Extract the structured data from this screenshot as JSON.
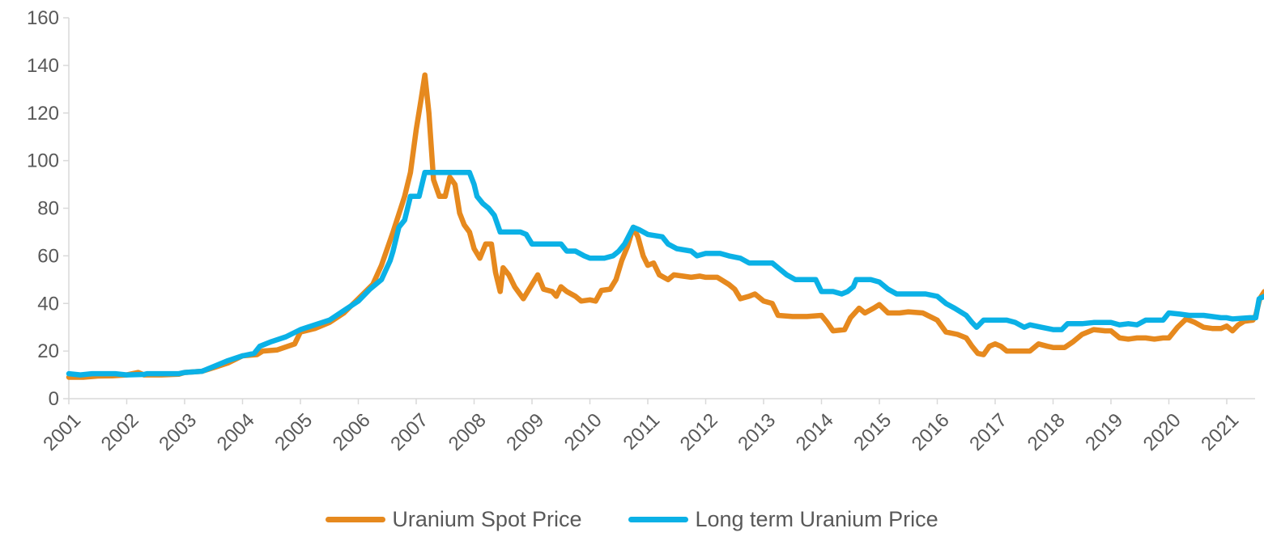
{
  "chart_data": {
    "type": "line",
    "title": "",
    "xlabel": "",
    "ylabel": "",
    "ylim": [
      0,
      160
    ],
    "yticks": [
      "0",
      "20",
      "40",
      "60",
      "80",
      "100",
      "120",
      "140",
      "160"
    ],
    "xlim": [
      2001,
      2021.5
    ],
    "xticks": [
      "2001",
      "2002",
      "2003",
      "2004",
      "2005",
      "2006",
      "2007",
      "2008",
      "2009",
      "2010",
      "2011",
      "2012",
      "2013",
      "2014",
      "2015",
      "2016",
      "2017",
      "2018",
      "2019",
      "2020",
      "2021"
    ],
    "grid": false,
    "legend_position": "bottom",
    "series": [
      {
        "name": "Uranium Spot Price",
        "color": "#E6891E",
        "points": [
          [
            2001.0,
            9
          ],
          [
            2001.25,
            9
          ],
          [
            2001.5,
            9.5
          ],
          [
            2001.75,
            9.6
          ],
          [
            2002.0,
            10
          ],
          [
            2002.2,
            11
          ],
          [
            2002.3,
            10
          ],
          [
            2002.6,
            10
          ],
          [
            2002.9,
            10.3
          ],
          [
            2003.0,
            11
          ],
          [
            2003.3,
            11.5
          ],
          [
            2003.5,
            13
          ],
          [
            2003.75,
            15
          ],
          [
            2004.0,
            18
          ],
          [
            2004.25,
            18.5
          ],
          [
            2004.35,
            20
          ],
          [
            2004.6,
            20.5
          ],
          [
            2004.9,
            23
          ],
          [
            2005.0,
            28
          ],
          [
            2005.25,
            29.5
          ],
          [
            2005.5,
            32
          ],
          [
            2005.75,
            36
          ],
          [
            2006.0,
            42
          ],
          [
            2006.25,
            48
          ],
          [
            2006.4,
            56
          ],
          [
            2006.6,
            70
          ],
          [
            2006.8,
            85
          ],
          [
            2006.9,
            95
          ],
          [
            2007.0,
            113
          ],
          [
            2007.08,
            125
          ],
          [
            2007.15,
            136
          ],
          [
            2007.22,
            120
          ],
          [
            2007.3,
            92
          ],
          [
            2007.4,
            85
          ],
          [
            2007.5,
            85
          ],
          [
            2007.58,
            93
          ],
          [
            2007.67,
            90
          ],
          [
            2007.75,
            78
          ],
          [
            2007.83,
            73
          ],
          [
            2007.92,
            70
          ],
          [
            2008.0,
            63
          ],
          [
            2008.1,
            59
          ],
          [
            2008.2,
            65
          ],
          [
            2008.3,
            65
          ],
          [
            2008.37,
            53
          ],
          [
            2008.45,
            45
          ],
          [
            2008.5,
            55
          ],
          [
            2008.6,
            52
          ],
          [
            2008.7,
            47
          ],
          [
            2008.85,
            42
          ],
          [
            2009.0,
            48
          ],
          [
            2009.1,
            52
          ],
          [
            2009.2,
            46
          ],
          [
            2009.35,
            45
          ],
          [
            2009.42,
            43
          ],
          [
            2009.5,
            47
          ],
          [
            2009.6,
            45
          ],
          [
            2009.75,
            43
          ],
          [
            2009.85,
            41
          ],
          [
            2010.0,
            41.5
          ],
          [
            2010.1,
            41
          ],
          [
            2010.2,
            45.5
          ],
          [
            2010.35,
            46
          ],
          [
            2010.45,
            50
          ],
          [
            2010.55,
            58
          ],
          [
            2010.65,
            64
          ],
          [
            2010.75,
            72
          ],
          [
            2010.83,
            68
          ],
          [
            2010.92,
            60
          ],
          [
            2011.0,
            56
          ],
          [
            2011.1,
            57
          ],
          [
            2011.2,
            52
          ],
          [
            2011.35,
            50
          ],
          [
            2011.45,
            52
          ],
          [
            2011.6,
            51.5
          ],
          [
            2011.75,
            51
          ],
          [
            2011.9,
            51.5
          ],
          [
            2012.0,
            51
          ],
          [
            2012.2,
            51
          ],
          [
            2012.4,
            48
          ],
          [
            2012.5,
            46
          ],
          [
            2012.6,
            42
          ],
          [
            2012.75,
            43
          ],
          [
            2012.85,
            44
          ],
          [
            2013.0,
            41
          ],
          [
            2013.15,
            40
          ],
          [
            2013.25,
            35
          ],
          [
            2013.5,
            34.5
          ],
          [
            2013.75,
            34.5
          ],
          [
            2014.0,
            35
          ],
          [
            2014.1,
            32
          ],
          [
            2014.2,
            28.5
          ],
          [
            2014.4,
            29
          ],
          [
            2014.5,
            34
          ],
          [
            2014.65,
            38
          ],
          [
            2014.75,
            36
          ],
          [
            2014.9,
            38
          ],
          [
            2015.0,
            39.5
          ],
          [
            2015.15,
            36
          ],
          [
            2015.35,
            36
          ],
          [
            2015.5,
            36.5
          ],
          [
            2015.75,
            36
          ],
          [
            2016.0,
            33
          ],
          [
            2016.15,
            28
          ],
          [
            2016.35,
            27
          ],
          [
            2016.5,
            25.5
          ],
          [
            2016.6,
            22
          ],
          [
            2016.7,
            19
          ],
          [
            2016.8,
            18.5
          ],
          [
            2016.9,
            22
          ],
          [
            2017.0,
            23
          ],
          [
            2017.1,
            22
          ],
          [
            2017.2,
            20
          ],
          [
            2017.4,
            20
          ],
          [
            2017.6,
            20
          ],
          [
            2017.75,
            23
          ],
          [
            2017.9,
            22
          ],
          [
            2018.0,
            21.5
          ],
          [
            2018.2,
            21.5
          ],
          [
            2018.35,
            24
          ],
          [
            2018.5,
            27
          ],
          [
            2018.7,
            29
          ],
          [
            2018.9,
            28.5
          ],
          [
            2019.0,
            28.5
          ],
          [
            2019.15,
            25.5
          ],
          [
            2019.3,
            25
          ],
          [
            2019.45,
            25.5
          ],
          [
            2019.6,
            25.5
          ],
          [
            2019.75,
            25
          ],
          [
            2019.9,
            25.5
          ],
          [
            2020.0,
            25.5
          ],
          [
            2020.15,
            30
          ],
          [
            2020.3,
            33.5
          ],
          [
            2020.45,
            32
          ],
          [
            2020.6,
            30
          ],
          [
            2020.75,
            29.5
          ],
          [
            2020.9,
            29.5
          ],
          [
            2021.0,
            30.5
          ],
          [
            2021.1,
            28.5
          ],
          [
            2021.2,
            31
          ],
          [
            2021.3,
            32.5
          ],
          [
            2021.45,
            33
          ],
          [
            2021.5,
            35
          ],
          [
            2021.57,
            42
          ],
          [
            2021.65,
            45
          ]
        ]
      },
      {
        "name": "Long term Uranium Price",
        "color": "#0BB1E6",
        "points": [
          [
            2001.0,
            10.5
          ],
          [
            2001.2,
            10
          ],
          [
            2001.4,
            10.5
          ],
          [
            2001.8,
            10.5
          ],
          [
            2002.0,
            10
          ],
          [
            2002.3,
            10.2
          ],
          [
            2002.35,
            10.5
          ],
          [
            2002.9,
            10.5
          ],
          [
            2003.0,
            11
          ],
          [
            2003.3,
            11.5
          ],
          [
            2003.5,
            13.5
          ],
          [
            2003.75,
            16
          ],
          [
            2004.0,
            18
          ],
          [
            2004.2,
            19
          ],
          [
            2004.3,
            22
          ],
          [
            2004.5,
            24
          ],
          [
            2004.75,
            26
          ],
          [
            2005.0,
            29
          ],
          [
            2005.25,
            31
          ],
          [
            2005.5,
            33
          ],
          [
            2005.75,
            37
          ],
          [
            2006.0,
            41
          ],
          [
            2006.2,
            46
          ],
          [
            2006.4,
            50
          ],
          [
            2006.55,
            58
          ],
          [
            2006.6,
            62
          ],
          [
            2006.7,
            72
          ],
          [
            2006.8,
            75
          ],
          [
            2006.9,
            85
          ],
          [
            2007.05,
            85
          ],
          [
            2007.15,
            95
          ],
          [
            2007.4,
            95
          ],
          [
            2007.67,
            95
          ],
          [
            2007.83,
            95
          ],
          [
            2007.92,
            95
          ],
          [
            2008.0,
            90
          ],
          [
            2008.05,
            85
          ],
          [
            2008.15,
            82
          ],
          [
            2008.25,
            80
          ],
          [
            2008.35,
            77
          ],
          [
            2008.45,
            70
          ],
          [
            2008.6,
            70
          ],
          [
            2008.8,
            70
          ],
          [
            2008.9,
            69
          ],
          [
            2009.0,
            65
          ],
          [
            2009.25,
            65
          ],
          [
            2009.5,
            65
          ],
          [
            2009.6,
            62
          ],
          [
            2009.75,
            62
          ],
          [
            2009.9,
            60
          ],
          [
            2010.0,
            59
          ],
          [
            2010.25,
            59
          ],
          [
            2010.4,
            60
          ],
          [
            2010.5,
            62
          ],
          [
            2010.6,
            65
          ],
          [
            2010.75,
            72
          ],
          [
            2010.85,
            71
          ],
          [
            2011.0,
            69
          ],
          [
            2011.25,
            68
          ],
          [
            2011.35,
            65
          ],
          [
            2011.5,
            63
          ],
          [
            2011.75,
            62
          ],
          [
            2011.85,
            60
          ],
          [
            2012.0,
            61
          ],
          [
            2012.25,
            61
          ],
          [
            2012.4,
            60
          ],
          [
            2012.6,
            59
          ],
          [
            2012.75,
            57
          ],
          [
            2013.0,
            57
          ],
          [
            2013.15,
            57
          ],
          [
            2013.25,
            55
          ],
          [
            2013.4,
            52
          ],
          [
            2013.55,
            50
          ],
          [
            2013.75,
            50
          ],
          [
            2013.9,
            50
          ],
          [
            2014.0,
            45
          ],
          [
            2014.2,
            45
          ],
          [
            2014.35,
            44
          ],
          [
            2014.45,
            45
          ],
          [
            2014.55,
            47
          ],
          [
            2014.6,
            50
          ],
          [
            2014.85,
            50
          ],
          [
            2015.0,
            49
          ],
          [
            2015.15,
            46
          ],
          [
            2015.3,
            44
          ],
          [
            2015.6,
            44
          ],
          [
            2015.8,
            44
          ],
          [
            2016.0,
            43
          ],
          [
            2016.15,
            40
          ],
          [
            2016.3,
            38
          ],
          [
            2016.5,
            35
          ],
          [
            2016.6,
            32
          ],
          [
            2016.68,
            30
          ],
          [
            2016.8,
            33
          ],
          [
            2017.0,
            33
          ],
          [
            2017.2,
            33
          ],
          [
            2017.35,
            32
          ],
          [
            2017.5,
            30
          ],
          [
            2017.6,
            31
          ],
          [
            2017.8,
            30
          ],
          [
            2018.0,
            29
          ],
          [
            2018.15,
            29
          ],
          [
            2018.25,
            31.5
          ],
          [
            2018.5,
            31.5
          ],
          [
            2018.7,
            32
          ],
          [
            2019.0,
            32
          ],
          [
            2019.15,
            31
          ],
          [
            2019.3,
            31.5
          ],
          [
            2019.45,
            31
          ],
          [
            2019.6,
            33
          ],
          [
            2019.9,
            33
          ],
          [
            2020.0,
            36
          ],
          [
            2020.2,
            35.5
          ],
          [
            2020.35,
            35
          ],
          [
            2020.6,
            35
          ],
          [
            2020.9,
            34
          ],
          [
            2021.0,
            34
          ],
          [
            2021.1,
            33.5
          ],
          [
            2021.4,
            34
          ],
          [
            2021.5,
            34
          ],
          [
            2021.56,
            42
          ],
          [
            2021.65,
            43
          ]
        ]
      }
    ]
  }
}
